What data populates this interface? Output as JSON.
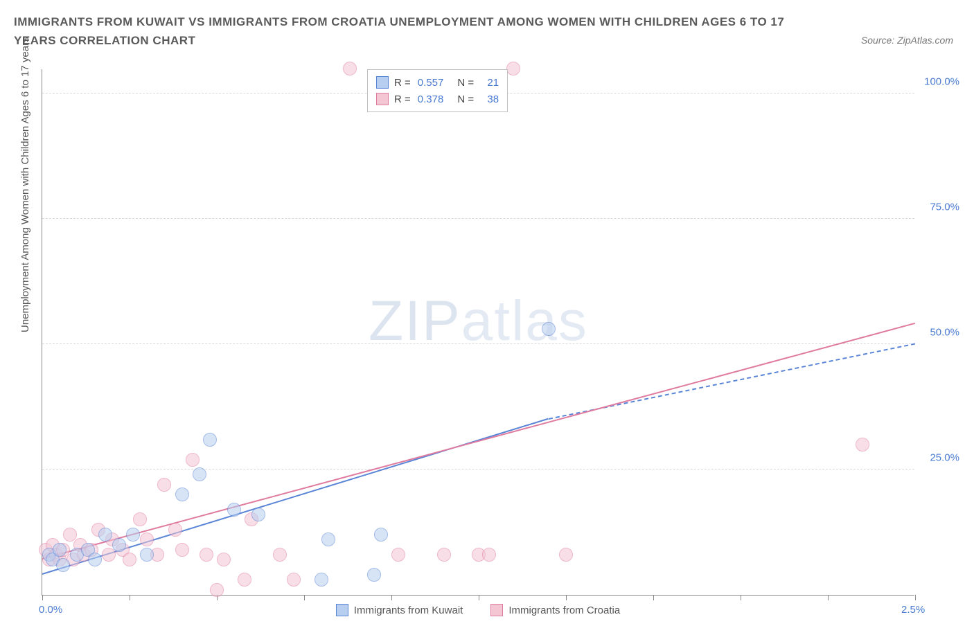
{
  "title": "IMMIGRANTS FROM KUWAIT VS IMMIGRANTS FROM CROATIA UNEMPLOYMENT AMONG WOMEN WITH CHILDREN AGES 6 TO 17 YEARS CORRELATION CHART",
  "source": "Source: ZipAtlas.com",
  "ylabel": "Unemployment Among Women with Children Ages 6 to 17 years",
  "watermark_bold": "ZIP",
  "watermark_thin": "atlas",
  "chart": {
    "type": "scatter",
    "xlim": [
      0,
      2.5
    ],
    "ylim": [
      0,
      105
    ],
    "y_gridlines": [
      25,
      50,
      75,
      100
    ],
    "y_tick_labels": [
      "25.0%",
      "50.0%",
      "75.0%",
      "100.0%"
    ],
    "x_ticks": [
      0,
      0.25,
      0.5,
      0.75,
      1.0,
      1.25,
      1.5,
      1.75,
      2.0,
      2.25,
      2.5
    ],
    "x_tick_labels": {
      "0": "0.0%",
      "2.5": "2.5%"
    },
    "background_color": "#ffffff",
    "grid_color": "#d8d8d8",
    "axis_color": "#888888",
    "tick_label_color": "#4a7bd0",
    "marker_radius": 10,
    "marker_opacity": 0.55,
    "series": [
      {
        "name": "Immigrants from Kuwait",
        "color_fill": "#b8cef0",
        "color_stroke": "#5a85d6",
        "R": "0.557",
        "N": "21",
        "trend": {
          "x1": 0,
          "y1": 4,
          "x2": 1.45,
          "y2": 35,
          "solid_until_x": 1.45,
          "dash_to_x": 2.5,
          "dash_to_y": 50
        },
        "points": [
          [
            0.02,
            8
          ],
          [
            0.03,
            7
          ],
          [
            0.05,
            9
          ],
          [
            0.06,
            6
          ],
          [
            0.1,
            8
          ],
          [
            0.13,
            9
          ],
          [
            0.15,
            7
          ],
          [
            0.18,
            12
          ],
          [
            0.22,
            10
          ],
          [
            0.26,
            12
          ],
          [
            0.3,
            8
          ],
          [
            0.4,
            20
          ],
          [
            0.45,
            24
          ],
          [
            0.48,
            31
          ],
          [
            0.55,
            17
          ],
          [
            0.62,
            16
          ],
          [
            0.8,
            3
          ],
          [
            0.82,
            11
          ],
          [
            0.95,
            4
          ],
          [
            0.97,
            12
          ],
          [
            1.45,
            53
          ]
        ]
      },
      {
        "name": "Immigrants from Croatia",
        "color_fill": "#f4c6d4",
        "color_stroke": "#e07ba0",
        "R": "0.378",
        "N": "38",
        "trend": {
          "x1": 0,
          "y1": 7,
          "x2": 2.5,
          "y2": 54,
          "solid_until_x": 2.5
        },
        "points": [
          [
            0.01,
            9
          ],
          [
            0.02,
            7
          ],
          [
            0.03,
            10
          ],
          [
            0.04,
            8
          ],
          [
            0.05,
            7
          ],
          [
            0.06,
            9
          ],
          [
            0.08,
            12
          ],
          [
            0.09,
            7
          ],
          [
            0.11,
            10
          ],
          [
            0.12,
            8
          ],
          [
            0.14,
            9
          ],
          [
            0.16,
            13
          ],
          [
            0.19,
            8
          ],
          [
            0.2,
            11
          ],
          [
            0.23,
            9
          ],
          [
            0.25,
            7
          ],
          [
            0.28,
            15
          ],
          [
            0.3,
            11
          ],
          [
            0.33,
            8
          ],
          [
            0.35,
            22
          ],
          [
            0.38,
            13
          ],
          [
            0.4,
            9
          ],
          [
            0.43,
            27
          ],
          [
            0.47,
            8
          ],
          [
            0.5,
            1
          ],
          [
            0.52,
            7
          ],
          [
            0.58,
            3
          ],
          [
            0.6,
            15
          ],
          [
            0.68,
            8
          ],
          [
            0.72,
            3
          ],
          [
            0.88,
            105
          ],
          [
            1.02,
            8
          ],
          [
            1.15,
            8
          ],
          [
            1.25,
            8
          ],
          [
            1.28,
            8
          ],
          [
            1.35,
            105
          ],
          [
            1.5,
            8
          ],
          [
            2.35,
            30
          ]
        ]
      }
    ]
  },
  "legend": {
    "items": [
      {
        "label": "Immigrants from Kuwait",
        "fill": "#b8cef0",
        "stroke": "#5a85d6"
      },
      {
        "label": "Immigrants from Croatia",
        "fill": "#f4c6d4",
        "stroke": "#e07ba0"
      }
    ]
  }
}
